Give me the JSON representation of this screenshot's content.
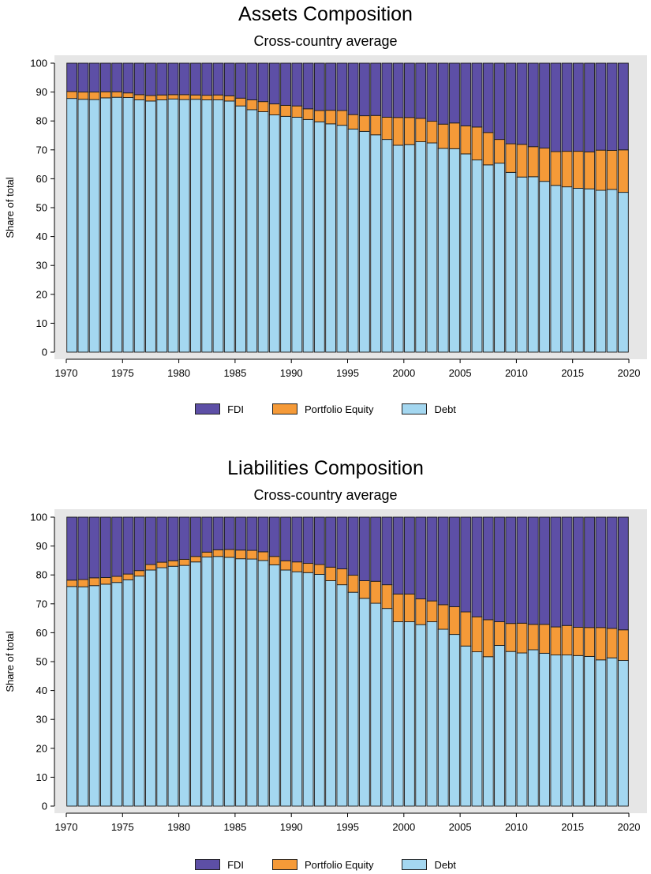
{
  "chart_data": [
    {
      "type": "bar",
      "stacked": true,
      "title": "Assets Composition",
      "subtitle": "Cross-country average",
      "ylabel": "Share of total",
      "xlabel": "",
      "ylim": [
        0,
        100
      ],
      "yticks": [
        "0",
        "10",
        "20",
        "30",
        "40",
        "50",
        "60",
        "70",
        "80",
        "90",
        "100"
      ],
      "xticks": [
        "1970",
        "1975",
        "1980",
        "1985",
        "1990",
        "1995",
        "2000",
        "2005",
        "2010",
        "2015",
        "2020"
      ],
      "grid": false,
      "legend_position": "bottom",
      "categories": [
        1970,
        1971,
        1972,
        1973,
        1974,
        1975,
        1976,
        1977,
        1978,
        1979,
        1980,
        1981,
        1982,
        1983,
        1984,
        1985,
        1986,
        1987,
        1988,
        1989,
        1990,
        1991,
        1992,
        1993,
        1994,
        1995,
        1996,
        1997,
        1998,
        1999,
        2000,
        2001,
        2002,
        2003,
        2004,
        2005,
        2006,
        2007,
        2008,
        2009,
        2010,
        2011,
        2012,
        2013,
        2014,
        2015,
        2016,
        2017,
        2018,
        2019
      ],
      "series": [
        {
          "name": "Debt",
          "color": "#a4d7f0",
          "values": [
            87.8,
            87.5,
            87.4,
            88,
            88.2,
            88.1,
            87.3,
            86.9,
            87.3,
            87.6,
            87.4,
            87.5,
            87.3,
            87.3,
            86.9,
            85.2,
            83.9,
            83.2,
            82.1,
            81.6,
            81.3,
            80.5,
            79.7,
            79,
            78.5,
            77.2,
            76.4,
            75.2,
            73.6,
            71.6,
            71.8,
            72.8,
            72.4,
            70.5,
            70.4,
            68.6,
            66.5,
            64.8,
            65.4,
            62.2,
            60.6,
            60.7,
            59.1,
            57.7,
            57.2,
            56.7,
            56.5,
            56,
            56.3,
            55.3
          ]
        },
        {
          "name": "Portfolio Equity",
          "color": "#f59a38",
          "values": [
            2.4,
            2.5,
            2.6,
            2.1,
            1.9,
            1.6,
            1.8,
            1.9,
            1.7,
            1.5,
            1.7,
            1.5,
            1.6,
            1.7,
            1.8,
            2.7,
            3.4,
            3.5,
            3.8,
            3.8,
            3.9,
            3.7,
            3.9,
            4.7,
            5.1,
            5,
            5.4,
            6.7,
            7.7,
            9.6,
            9.4,
            8.1,
            7.5,
            8.4,
            8.9,
            9.7,
            11.4,
            11.2,
            8.2,
            9.9,
            11.3,
            10.4,
            11.5,
            11.7,
            12.3,
            12.8,
            12.8,
            13.9,
            13.5,
            14.7
          ]
        },
        {
          "name": "FDI",
          "color": "#5d4fa6",
          "values": [
            9.8,
            10,
            10,
            9.9,
            9.9,
            10.3,
            10.9,
            11.2,
            11,
            10.9,
            10.9,
            11,
            11.1,
            11,
            11.3,
            12.1,
            12.7,
            13.3,
            14.1,
            14.6,
            14.8,
            15.8,
            16.4,
            16.3,
            16.4,
            17.8,
            18.2,
            18.1,
            18.7,
            18.8,
            18.8,
            19.1,
            20.1,
            21.1,
            20.7,
            21.7,
            22.1,
            24,
            26.4,
            27.9,
            28.1,
            28.9,
            29.4,
            30.6,
            30.5,
            30.5,
            30.7,
            30.1,
            30.2,
            30
          ]
        }
      ]
    },
    {
      "type": "bar",
      "stacked": true,
      "title": "Liabilities Composition",
      "subtitle": "Cross-country average",
      "ylabel": "Share of total",
      "xlabel": "",
      "ylim": [
        0,
        100
      ],
      "yticks": [
        "0",
        "10",
        "20",
        "30",
        "40",
        "50",
        "60",
        "70",
        "80",
        "90",
        "100"
      ],
      "xticks": [
        "1970",
        "1975",
        "1980",
        "1985",
        "1990",
        "1995",
        "2000",
        "2005",
        "2010",
        "2015",
        "2020"
      ],
      "grid": false,
      "legend_position": "bottom",
      "categories": [
        1970,
        1971,
        1972,
        1973,
        1974,
        1975,
        1976,
        1977,
        1978,
        1979,
        1980,
        1981,
        1982,
        1983,
        1984,
        1985,
        1986,
        1987,
        1988,
        1989,
        1990,
        1991,
        1992,
        1993,
        1994,
        1995,
        1996,
        1997,
        1998,
        1999,
        2000,
        2001,
        2002,
        2003,
        2004,
        2005,
        2006,
        2007,
        2008,
        2009,
        2010,
        2011,
        2012,
        2013,
        2014,
        2015,
        2016,
        2017,
        2018,
        2019
      ],
      "series": [
        {
          "name": "Debt",
          "color": "#a4d7f0",
          "values": [
            76,
            75.9,
            76.3,
            76.8,
            77.4,
            78.3,
            79.6,
            81.7,
            82.5,
            83,
            83.3,
            84.5,
            86.2,
            86.4,
            86.1,
            85.6,
            85.5,
            85,
            83.5,
            81.7,
            81.1,
            80.8,
            80.2,
            78,
            76.6,
            74,
            71.9,
            70.2,
            68.4,
            63.8,
            63.8,
            62.8,
            63.8,
            61.2,
            59.4,
            55.4,
            53.4,
            51.7,
            55.6,
            53.5,
            53,
            54.1,
            52.9,
            52.3,
            52.3,
            52.1,
            51.8,
            50.6,
            51.3,
            50.4
          ]
        },
        {
          "name": "Portfolio Equity",
          "color": "#f59a38",
          "values": [
            2.2,
            2.5,
            2.7,
            2.3,
            2.1,
            2,
            1.9,
            1.9,
            1.9,
            1.9,
            2.1,
            1.9,
            1.7,
            2.3,
            2.7,
            3,
            3,
            3,
            2.9,
            3.2,
            3.4,
            3.2,
            3.4,
            4.7,
            5.5,
            5.9,
            6.1,
            7.6,
            8.2,
            9.6,
            9.6,
            8.9,
            7.2,
            8.5,
            9.6,
            11.8,
            12.1,
            12.8,
            8.2,
            9.7,
            10.3,
            8.8,
            10,
            9.7,
            10.2,
            9.8,
            10,
            11.2,
            10.2,
            10.6
          ]
        },
        {
          "name": "FDI",
          "color": "#5d4fa6",
          "values": [
            21.8,
            21.6,
            21,
            20.9,
            20.5,
            19.7,
            18.5,
            16.4,
            15.6,
            15.1,
            14.6,
            13.6,
            12.1,
            11.3,
            11.2,
            11.4,
            11.5,
            12,
            13.6,
            15.1,
            15.5,
            16,
            16.4,
            17.3,
            17.9,
            20.1,
            22,
            22.2,
            23.4,
            26.6,
            26.6,
            28.3,
            29,
            30.3,
            31,
            32.8,
            34.5,
            35.5,
            36.2,
            36.8,
            36.7,
            37.1,
            37.1,
            38,
            37.5,
            38.1,
            38.2,
            38.2,
            38.5,
            39
          ]
        }
      ]
    }
  ]
}
